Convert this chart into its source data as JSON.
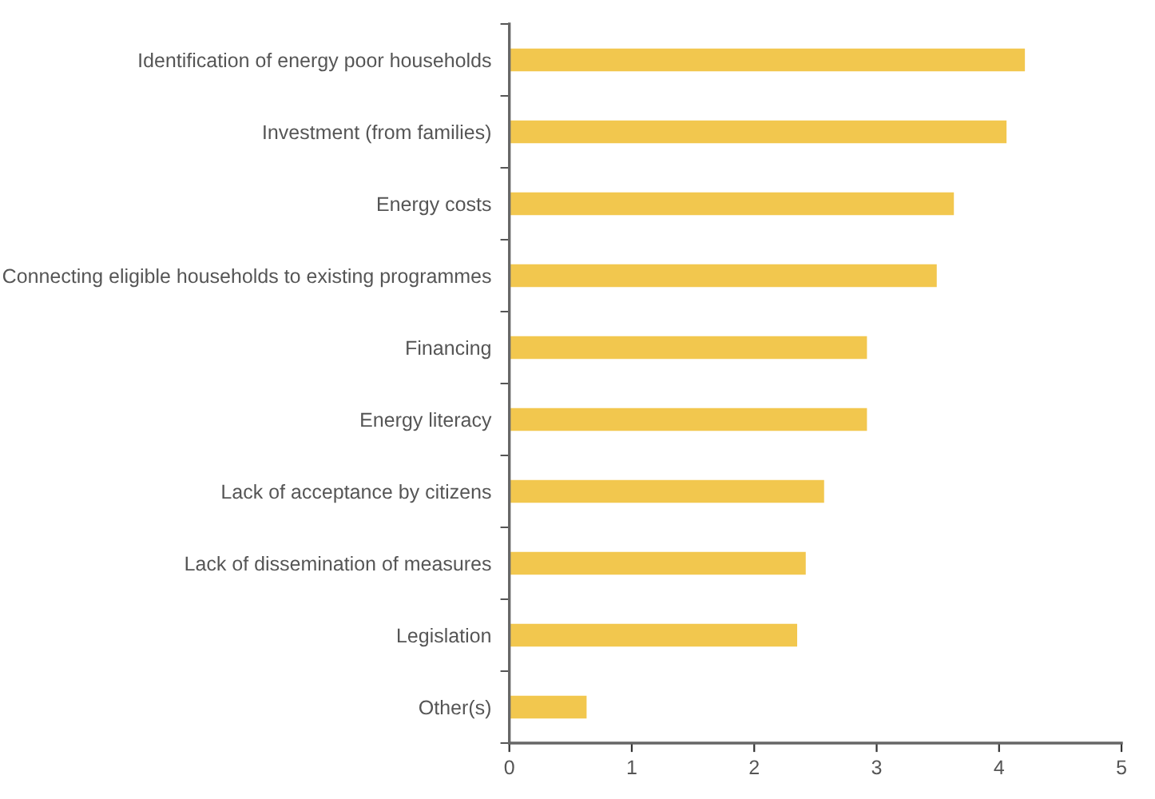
{
  "chart_data": {
    "type": "bar",
    "orientation": "horizontal",
    "categories": [
      "Identification of energy poor households",
      "Investment (from families)",
      "Energy costs",
      "Connecting eligible households to existing programmes",
      "Financing",
      "Energy literacy",
      "Lack of acceptance by citizens",
      "Lack of dissemination of measures",
      "Legislation",
      "Other(s)"
    ],
    "values": [
      4.22,
      4.07,
      3.64,
      3.5,
      2.93,
      2.93,
      2.58,
      2.43,
      2.36,
      0.64
    ],
    "color": "#f2c74e",
    "xlim": [
      0,
      5
    ],
    "xticks": [
      0,
      1,
      2,
      3,
      4,
      5
    ],
    "grid": false
  }
}
